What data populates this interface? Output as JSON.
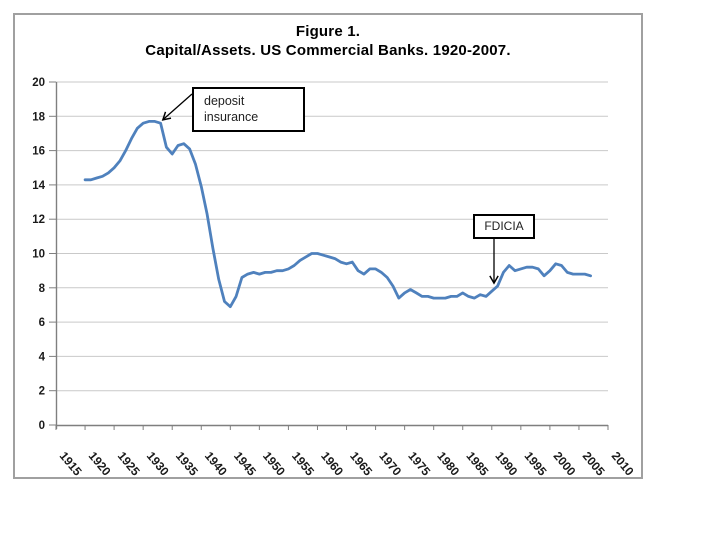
{
  "chart": {
    "title_line1": "Figure 1.",
    "title_line2": "Capital/Assets. US Commercial Banks. 1920-2007."
  },
  "annotations": {
    "deposit_insurance": {
      "line1": "deposit",
      "line2": "insurance"
    },
    "fdicia": {
      "label": "FDICIA"
    }
  },
  "chart_data": {
    "type": "line",
    "title": "Figure 1. Capital/Assets. US Commercial Banks. 1920-2007.",
    "xlabel": "",
    "ylabel": "",
    "xlim": [
      1915,
      2010
    ],
    "ylim": [
      0,
      20
    ],
    "grid": "horizontal",
    "legend": "none",
    "line_color": "#4F81BD",
    "grid_color": "#c9c9c9",
    "axis_color": "#7f7f7f",
    "frame_color": "#a0a0a0",
    "y_ticks": [
      0,
      2,
      4,
      6,
      8,
      10,
      12,
      14,
      16,
      18,
      20
    ],
    "x_tick_labels": [
      "1915",
      "1920",
      "1925",
      "1930",
      "1935",
      "1940",
      "1945",
      "1950",
      "1955",
      "1960",
      "1965",
      "1970",
      "1975",
      "1980",
      "1985",
      "1990",
      "1995",
      "2000",
      "2005",
      "2010"
    ],
    "series": [
      {
        "name": "Capital/Assets (%), US Commercial Banks",
        "x": [
          1920,
          1921,
          1922,
          1923,
          1924,
          1925,
          1926,
          1927,
          1928,
          1929,
          1930,
          1931,
          1932,
          1933,
          1934,
          1935,
          1936,
          1937,
          1938,
          1939,
          1940,
          1941,
          1942,
          1943,
          1944,
          1945,
          1946,
          1947,
          1948,
          1949,
          1950,
          1951,
          1952,
          1953,
          1954,
          1955,
          1956,
          1957,
          1958,
          1959,
          1960,
          1961,
          1962,
          1963,
          1964,
          1965,
          1966,
          1967,
          1968,
          1969,
          1970,
          1971,
          1972,
          1973,
          1974,
          1975,
          1976,
          1977,
          1978,
          1979,
          1980,
          1981,
          1982,
          1983,
          1984,
          1985,
          1986,
          1987,
          1988,
          1989,
          1990,
          1991,
          1992,
          1993,
          1994,
          1995,
          1996,
          1997,
          1998,
          1999,
          2000,
          2001,
          2002,
          2003,
          2004,
          2005,
          2006,
          2007
        ],
        "values": [
          14.3,
          14.3,
          14.4,
          14.5,
          14.7,
          15.0,
          15.4,
          16.0,
          16.7,
          17.3,
          17.6,
          17.7,
          17.7,
          17.6,
          16.2,
          15.8,
          16.3,
          16.4,
          16.1,
          15.2,
          13.9,
          12.3,
          10.3,
          8.5,
          7.2,
          6.9,
          7.5,
          8.6,
          8.8,
          8.9,
          8.8,
          8.9,
          8.9,
          9.0,
          9.0,
          9.1,
          9.3,
          9.6,
          9.8,
          10.0,
          10.0,
          9.9,
          9.8,
          9.7,
          9.5,
          9.4,
          9.5,
          9.0,
          8.8,
          9.1,
          9.1,
          8.9,
          8.6,
          8.1,
          7.4,
          7.7,
          7.9,
          7.7,
          7.5,
          7.5,
          7.4,
          7.4,
          7.4,
          7.5,
          7.5,
          7.7,
          7.5,
          7.4,
          7.6,
          7.5,
          7.8,
          8.1,
          8.9,
          9.3,
          9.0,
          9.1,
          9.2,
          9.2,
          9.1,
          8.7,
          9.0,
          9.4,
          9.3,
          8.9,
          8.8,
          8.8,
          8.8,
          8.7
        ]
      }
    ],
    "annotations": [
      {
        "text": "deposit insurance",
        "points_to_year": 1933,
        "points_to_value": 17.6
      },
      {
        "text": "FDICIA",
        "points_to_year": 1991,
        "points_to_value": 8.1
      }
    ]
  }
}
